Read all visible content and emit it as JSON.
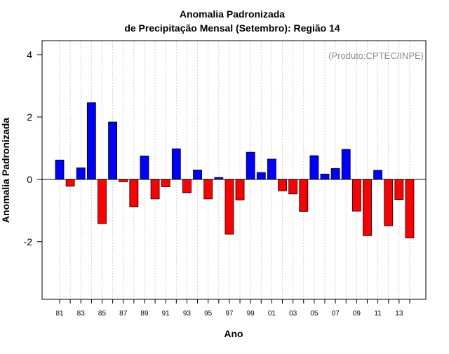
{
  "chart_data": {
    "type": "bar",
    "title": "Anomalia Padronizada",
    "subtitle": "de Precipitação Mensal (Setembro): Região 14",
    "xlabel": "Ano",
    "ylabel": "Anomalia Padronizada",
    "annotation": "(Produto:CPTEC/INPE)",
    "ylim": [
      -3.85,
      4.45
    ],
    "yticks": [
      -2,
      0,
      2,
      4
    ],
    "yticklabels": [
      "-2",
      "0",
      "2",
      "4"
    ],
    "grid": true,
    "categories": [
      "1981",
      "1982",
      "1983",
      "1984",
      "1985",
      "1986",
      "1987",
      "1988",
      "1989",
      "1990",
      "1991",
      "1992",
      "1993",
      "1994",
      "1995",
      "1996",
      "1997",
      "1998",
      "1999",
      "2000",
      "2001",
      "2002",
      "2003",
      "2004",
      "2005",
      "2006",
      "2007",
      "2008",
      "2009",
      "2010",
      "2011",
      "2012",
      "2013",
      "2014"
    ],
    "xticklabels": [
      "81",
      "",
      "83",
      "",
      "85",
      "",
      "87",
      "",
      "89",
      "",
      "91",
      "",
      "93",
      "",
      "95",
      "",
      "97",
      "",
      "99",
      "",
      "01",
      "",
      "03",
      "",
      "05",
      "",
      "07",
      "",
      "09",
      "",
      "11",
      "",
      "13",
      ""
    ],
    "values": [
      0.62,
      -0.22,
      0.37,
      2.46,
      -1.42,
      1.84,
      -0.08,
      -0.88,
      0.75,
      -0.63,
      -0.24,
      0.98,
      -0.43,
      0.3,
      -0.63,
      0.06,
      -1.76,
      -0.66,
      0.87,
      0.22,
      0.65,
      -0.37,
      -0.47,
      -1.03,
      0.76,
      0.17,
      0.35,
      0.96,
      -1.02,
      -1.81,
      0.29,
      -1.49,
      -0.65,
      -1.88
    ],
    "colors": {
      "positive": "#0000ff",
      "negative": "#ff0000",
      "grid": "#c8c8c8",
      "axis": "#000000",
      "annotation": "#8c8c8c"
    }
  }
}
